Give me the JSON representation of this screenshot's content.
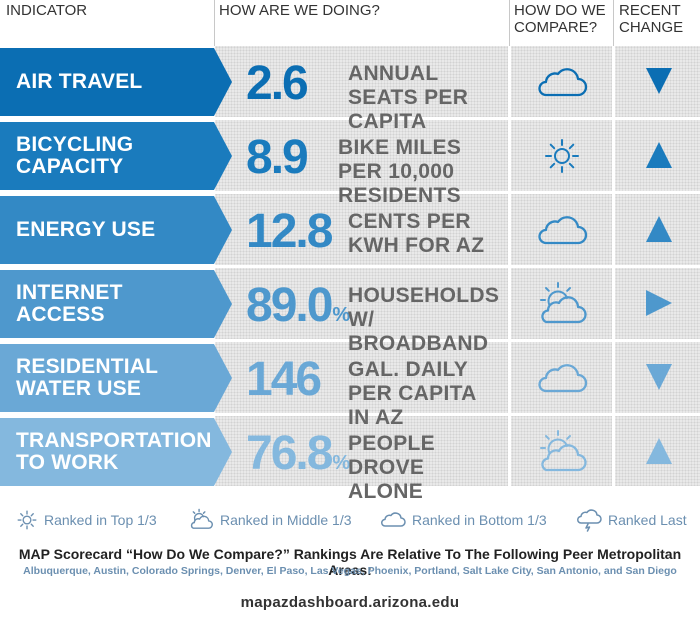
{
  "header": {
    "indicator": "INDICATOR",
    "doing": "HOW ARE WE DOING?",
    "compare": "HOW DO WE COMPARE?",
    "change": "RECENT CHANGE"
  },
  "colors": {
    "row1": "#0b6eb3",
    "row2": "#1a7bbd",
    "row3": "#3389c5",
    "row4": "#4e98cd",
    "row5": "#6aa8d6",
    "row6": "#84b8de"
  },
  "rows": [
    {
      "label": "AIR TRAVEL",
      "value": "2.6",
      "unit": "",
      "desc": "ANNUAL SEATS PER CAPITA",
      "compare_icon": "cloud-icon",
      "change_icon": "down-arrow-icon"
    },
    {
      "label": "BICYCLING CAPACITY",
      "value": "8.9",
      "unit": "",
      "desc": "BIKE MILES PER 10,000 RESIDENTS",
      "compare_icon": "sun-icon",
      "change_icon": "up-arrow-icon"
    },
    {
      "label": "ENERGY USE",
      "value": "12.8",
      "unit": "",
      "desc": "CENTS PER KWH FOR AZ",
      "compare_icon": "cloud-icon",
      "change_icon": "up-arrow-icon"
    },
    {
      "label": "INTERNET ACCESS",
      "value": "89.0",
      "unit": "%",
      "desc": "HOUSEHOLDS W/ BROADBAND",
      "compare_icon": "partly-cloudy-icon",
      "change_icon": "right-arrow-icon"
    },
    {
      "label": "RESIDENTIAL WATER USE",
      "value": "146",
      "unit": "",
      "desc": "GAL. DAILY PER CAPITA IN AZ",
      "compare_icon": "cloud-icon",
      "change_icon": "down-arrow-icon"
    },
    {
      "label": "TRANSPORTATION TO WORK",
      "value": "76.8",
      "unit": "%",
      "desc": "PEOPLE DROVE ALONE",
      "compare_icon": "partly-cloudy-icon",
      "change_icon": "up-arrow-icon"
    }
  ],
  "legend": {
    "top": "Ranked in Top 1/3",
    "middle": "Ranked in Middle 1/3",
    "bottom": "Ranked in Bottom 1/3",
    "last": "Ranked Last"
  },
  "footnote": {
    "title": "MAP Scorecard “How Do We Compare?” Rankings Are Relative To The Following Peer Metropolitan Areas:",
    "list": "Albuquerque, Austin, Colorado Springs, Denver, El Paso, Las Vegas, Phoenix, Portland, Salt Lake City, San Antonio, and San Diego"
  },
  "site": "mapazdashboard.arizona.edu"
}
